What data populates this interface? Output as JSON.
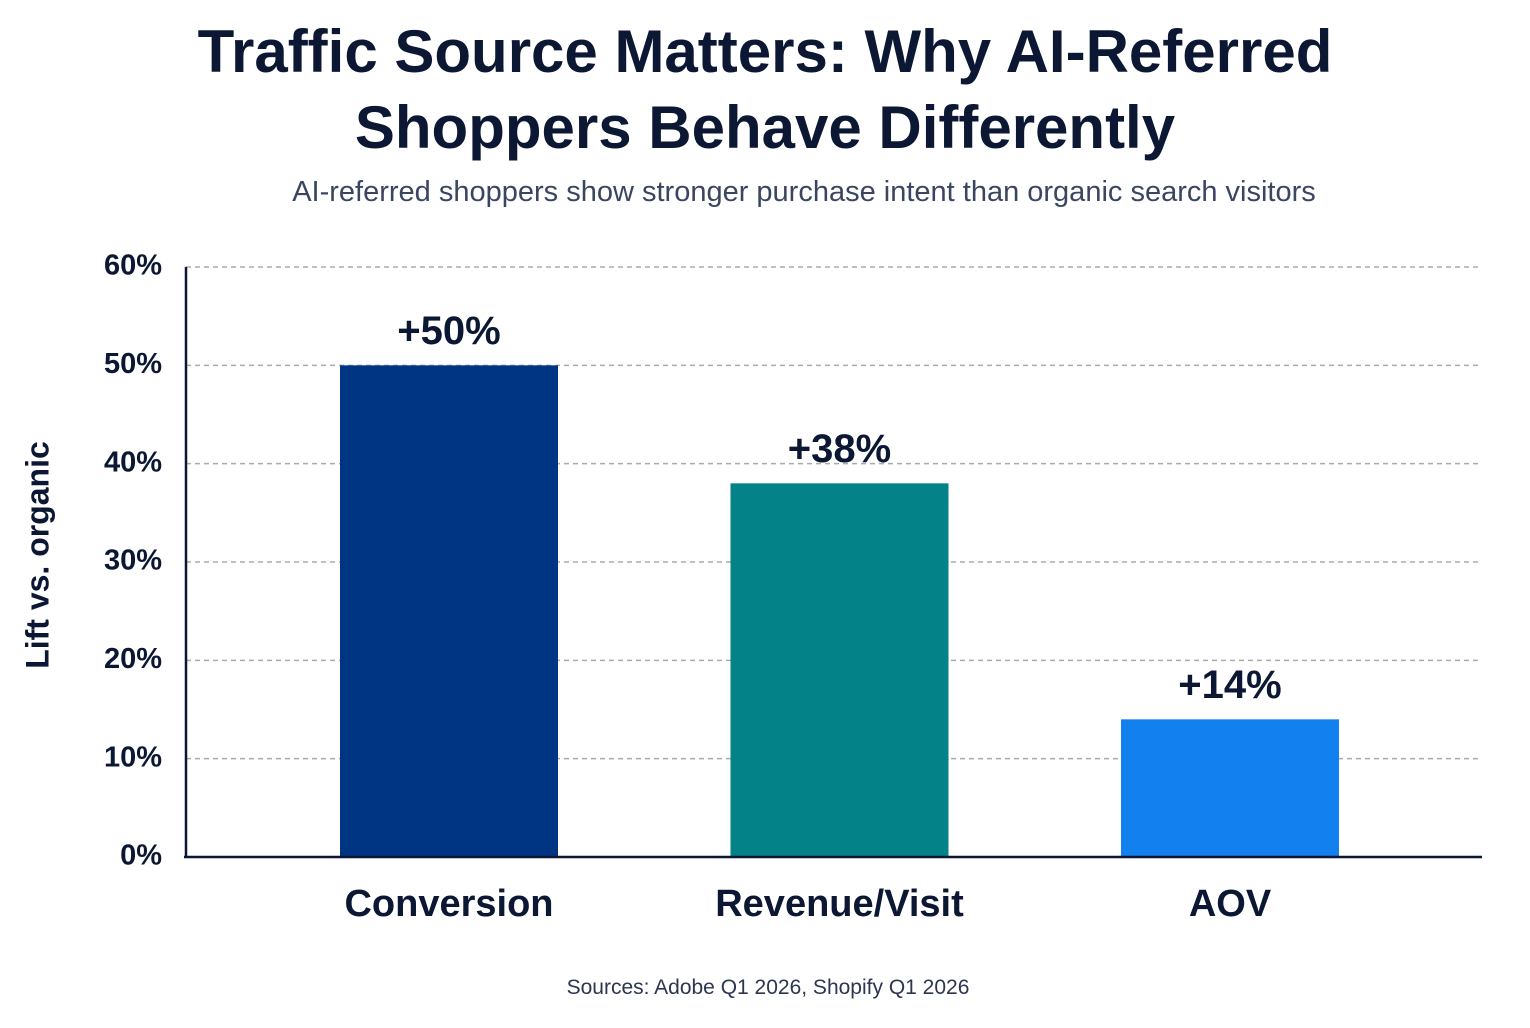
{
  "chart_data": {
    "type": "bar",
    "title": "Traffic Source Matters: Why AI-Referred Shoppers Behave Differently",
    "subtitle": "AI-referred shoppers show stronger purchase intent than organic search visitors",
    "y_label": "Lift vs. organic",
    "source": "Sources: Adobe Q1 2026, Shopify Q1 2026",
    "categories": [
      "Conversion",
      "Revenue/Visit",
      "AOV"
    ],
    "values": [
      50,
      38,
      14
    ],
    "value_labels": [
      "+50%",
      "+38%",
      "+14%"
    ],
    "colors": [
      "#003584",
      "#038387",
      "#1380f0"
    ],
    "ylim": [
      0,
      60
    ],
    "yticks": [
      {
        "value": 0,
        "label": "0%"
      },
      {
        "value": 10,
        "label": "10%"
      },
      {
        "value": 20,
        "label": "20%"
      },
      {
        "value": 30,
        "label": "30%"
      },
      {
        "value": 40,
        "label": "40%"
      },
      {
        "value": 50,
        "label": "50%"
      },
      {
        "value": 60,
        "label": "60%"
      }
    ],
    "grid": true
  }
}
